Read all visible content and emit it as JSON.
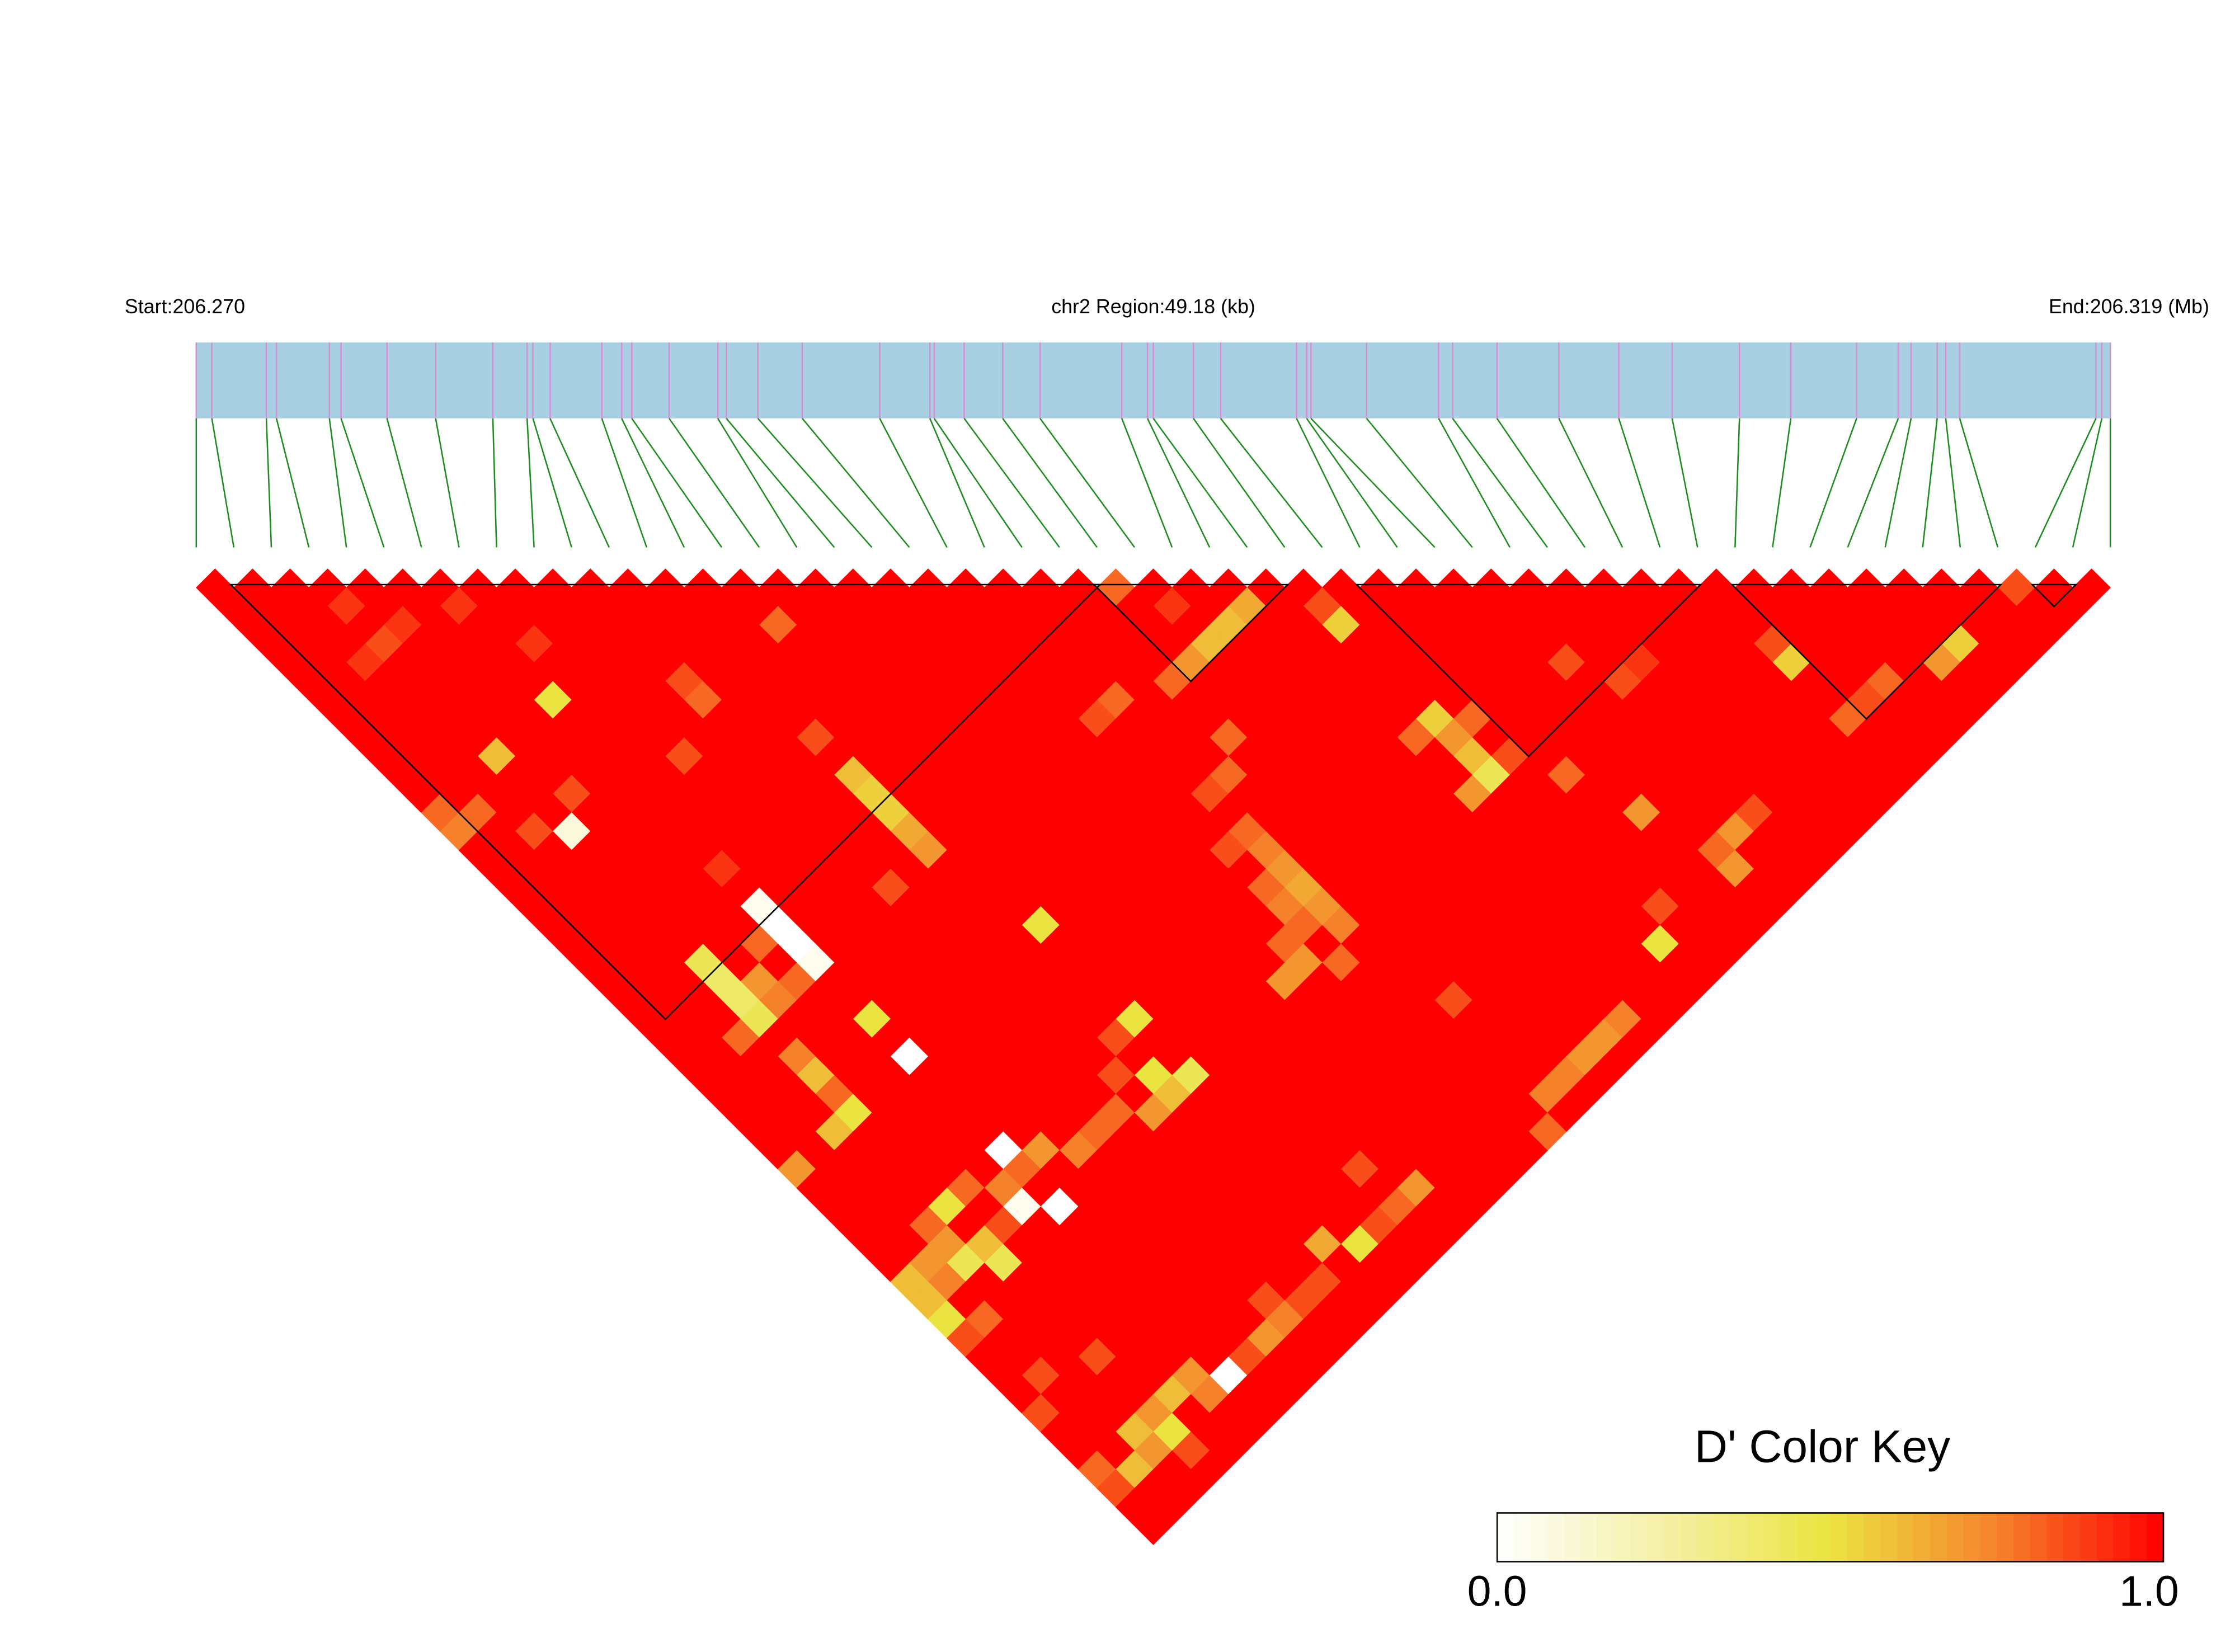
{
  "chart_data": {
    "type": "ld-heatmap",
    "start_label": "Start:206.270",
    "region_label": "chr2 Region:49.18 (kb)",
    "end_label": "End:206.319 (Mb)",
    "xlim": [
      0,
      49.18
    ],
    "snp_positions_kb": [
      0.0,
      0.4,
      1.8,
      2.06,
      3.42,
      3.72,
      4.9,
      6.15,
      7.62,
      8.5,
      8.65,
      9.09,
      10.42,
      10.93,
      11.19,
      12.15,
      13.4,
      13.62,
      14.43,
      15.57,
      17.56,
      18.85,
      18.96,
      19.73,
      20.72,
      21.68,
      23.78,
      24.44,
      24.59,
      25.62,
      26.32,
      28.27,
      28.53,
      28.64,
      30.07,
      31.92,
      32.28,
      33.42,
      35.01,
      36.55,
      37.92,
      39.65,
      40.97,
      42.66,
      43.73,
      44.06,
      44.73,
      44.95,
      45.31,
      48.81,
      48.96,
      49.18
    ],
    "ld": [
      [
        1,
        1,
        1,
        1,
        1,
        1,
        1,
        1,
        1,
        1,
        1,
        1,
        1,
        1,
        1,
        1,
        1,
        1,
        1,
        1,
        1,
        1,
        1,
        1,
        0.8,
        1,
        1,
        1,
        1,
        1,
        1,
        1,
        1,
        1,
        1,
        1,
        1,
        1,
        1,
        1,
        1,
        1,
        1,
        1,
        1,
        1,
        1,
        1,
        0.85,
        1,
        1
      ],
      [
        1,
        1,
        1,
        0.9,
        1,
        1,
        0.9,
        1,
        1,
        1,
        1,
        1,
        1,
        1,
        1,
        1,
        1,
        1,
        1,
        1,
        1,
        1,
        1,
        1,
        1,
        0.9,
        1,
        0.65,
        1,
        0.85,
        1,
        1,
        1,
        1,
        1,
        1,
        1,
        1,
        1,
        1,
        1,
        1,
        1,
        1,
        1,
        1,
        1,
        1,
        1,
        1
      ],
      [
        1,
        1,
        1,
        1,
        0.9,
        1,
        1,
        1,
        1,
        1,
        1,
        1,
        1,
        1,
        0.8,
        1,
        1,
        1,
        1,
        1,
        1,
        1,
        1,
        1,
        1,
        1,
        0.6,
        1,
        1,
        0.55,
        1,
        1,
        1,
        1,
        1,
        1,
        1,
        1,
        1,
        1,
        1,
        1,
        1,
        1,
        1,
        1,
        1,
        1,
        1
      ],
      [
        1,
        1,
        1,
        0.85,
        1,
        1,
        1,
        0.9,
        1,
        1,
        1,
        1,
        1,
        1,
        1,
        1,
        1,
        1,
        1,
        1,
        1,
        1,
        1,
        1,
        1,
        0.6,
        1,
        1,
        1,
        1,
        1,
        1,
        1,
        1,
        1,
        1,
        1,
        1,
        1,
        1,
        0.85,
        1,
        1,
        1,
        1,
        0.55,
        1,
        1
      ],
      [
        1,
        1,
        0.9,
        1,
        1,
        1,
        1,
        1,
        1,
        1,
        1,
        1,
        1,
        1,
        1,
        1,
        1,
        1,
        1,
        1,
        1,
        1,
        1,
        1,
        0.7,
        1,
        1,
        1,
        1,
        1,
        1,
        1,
        1,
        1,
        0.85,
        1,
        0.9,
        1,
        1,
        1,
        0.55,
        1,
        1,
        1,
        0.7,
        1,
        1
      ],
      [
        1,
        1,
        1,
        1,
        1,
        1,
        1,
        1,
        1,
        1,
        0.85,
        1,
        1,
        1,
        1,
        1,
        1,
        1,
        1,
        1,
        1,
        1,
        1,
        0.8,
        1,
        1,
        1,
        1,
        1,
        1,
        1,
        1,
        1,
        1,
        1,
        0.85,
        1,
        1,
        1,
        1,
        1,
        1,
        0.8,
        1,
        1,
        1
      ],
      [
        1,
        1,
        1,
        1,
        1,
        1,
        0.5,
        1,
        1,
        1,
        0.8,
        1,
        1,
        1,
        1,
        1,
        1,
        1,
        1,
        1,
        1,
        0.8,
        1,
        1,
        1,
        1,
        1,
        1,
        1,
        1,
        1,
        1,
        1,
        1,
        1,
        1,
        1,
        1,
        1,
        1,
        1,
        0.85,
        1,
        1,
        1
      ],
      [
        1,
        1,
        1,
        1,
        1,
        1,
        1,
        1,
        1,
        1,
        1,
        1,
        1,
        1,
        1,
        1,
        1,
        1,
        1,
        1,
        0.85,
        1,
        1,
        1,
        1,
        1,
        1,
        1,
        1,
        0.55,
        0.8,
        1,
        1,
        1,
        1,
        1,
        1,
        1,
        1,
        1,
        0.8,
        1,
        1,
        1
      ],
      [
        1,
        1,
        1,
        1,
        1,
        1,
        1,
        1,
        1,
        1,
        1,
        1,
        0.85,
        1,
        1,
        1,
        1,
        1,
        1,
        1,
        1,
        1,
        1,
        0.8,
        1,
        1,
        1,
        1,
        0.8,
        0.7,
        1,
        1,
        1,
        1,
        1,
        1,
        1,
        1,
        1,
        1,
        1,
        1,
        1
      ],
      [
        1,
        1,
        1,
        0.6,
        1,
        1,
        1,
        1,
        0.85,
        1,
        1,
        1,
        1,
        1,
        1,
        1,
        1,
        1,
        1,
        1,
        1,
        1,
        1,
        1,
        1,
        1,
        1,
        1,
        1,
        0.6,
        0.85,
        1,
        1,
        1,
        1,
        1,
        1,
        1,
        1,
        1,
        1,
        1
      ],
      [
        1,
        1,
        1,
        1,
        1,
        1,
        1,
        1,
        1,
        1,
        1,
        1,
        0.6,
        1,
        1,
        1,
        1,
        1,
        1,
        1,
        1,
        1,
        0.8,
        1,
        1,
        1,
        1,
        1,
        1,
        0.45,
        1,
        0.8,
        1,
        1,
        1,
        1,
        1,
        1,
        1,
        1,
        1
      ],
      [
        1,
        1,
        1,
        1,
        0.85,
        1,
        1,
        1,
        1,
        1,
        1,
        1,
        0.55,
        1,
        1,
        1,
        1,
        1,
        1,
        1,
        1,
        0.85,
        1,
        1,
        1,
        1,
        1,
        1,
        0.7,
        1,
        1,
        1,
        1,
        1,
        1,
        1,
        1,
        1,
        1,
        1
      ],
      [
        0.8,
        0.8,
        1,
        1,
        1,
        1,
        1,
        1,
        1,
        1,
        1,
        1,
        0.55,
        1,
        1,
        1,
        1,
        1,
        1,
        1,
        1,
        1,
        1,
        1,
        1,
        1,
        1,
        1,
        1,
        1,
        1,
        1,
        0.7,
        1,
        1,
        0.85,
        1,
        1,
        1
      ],
      [
        0.75,
        1,
        0.85,
        0.1,
        1,
        1,
        1,
        1,
        1,
        1,
        1,
        1,
        0.65,
        1,
        1,
        1,
        1,
        1,
        1,
        1,
        1,
        0.8,
        1,
        1,
        1,
        1,
        1,
        1,
        1,
        1,
        1,
        1,
        1,
        1,
        0.7,
        1,
        1,
        1
      ],
      [
        1,
        1,
        1,
        1,
        1,
        1,
        1,
        1,
        1,
        1,
        1,
        1,
        0.7,
        1,
        1,
        1,
        1,
        1,
        1,
        1,
        0.85,
        0.75,
        1,
        1,
        1,
        1,
        1,
        1,
        1,
        1,
        1,
        1,
        1,
        0.8,
        1,
        1,
        1
      ],
      [
        1,
        1,
        1,
        1,
        1,
        1,
        0.9,
        1,
        1,
        1,
        1,
        1,
        1,
        1,
        1,
        1,
        1,
        1,
        1,
        1,
        1,
        0.7,
        1,
        1,
        1,
        1,
        1,
        1,
        1,
        1,
        1,
        1,
        1,
        0.7,
        1,
        1
      ],
      [
        1,
        1,
        1,
        1,
        1,
        1,
        1,
        1,
        1,
        1,
        0.85,
        1,
        1,
        1,
        1,
        1,
        1,
        1,
        1,
        1,
        0.8,
        0.65,
        1,
        1,
        1,
        1,
        1,
        1,
        1,
        1,
        1,
        1,
        1,
        1,
        1
      ],
      [
        1,
        1,
        1,
        1,
        1,
        1,
        0.05,
        1,
        1,
        1,
        1,
        1,
        1,
        1,
        1,
        1,
        1,
        1,
        1,
        1,
        0.75,
        0.7,
        1,
        1,
        1,
        1,
        1,
        1,
        1,
        1,
        0.85,
        1,
        1,
        1
      ],
      [
        1,
        1,
        1,
        1,
        1,
        1,
        0,
        1,
        1,
        1,
        1,
        1,
        1,
        0.5,
        1,
        1,
        1,
        1,
        1,
        1,
        0.8,
        0.75,
        1,
        1,
        1,
        1,
        1,
        1,
        1,
        1,
        1,
        1,
        1
      ],
      [
        1,
        1,
        1,
        1,
        1,
        0.8,
        0,
        1,
        1,
        1,
        1,
        1,
        1,
        1,
        1,
        1,
        1,
        1,
        1,
        0.8,
        1,
        1,
        1,
        1,
        1,
        1,
        1,
        1,
        1,
        0.5,
        1,
        1
      ],
      [
        1,
        1,
        1,
        0.45,
        1,
        1,
        0.05,
        1,
        1,
        1,
        1,
        1,
        1,
        1,
        1,
        1,
        1,
        1,
        1,
        0.7,
        0.8,
        1,
        1,
        1,
        1,
        1,
        1,
        1,
        1,
        1,
        1
      ],
      [
        1,
        1,
        1,
        0.4,
        0.7,
        0.8,
        1,
        1,
        1,
        1,
        1,
        1,
        1,
        1,
        1,
        1,
        1,
        1,
        0.7,
        1,
        1,
        1,
        1,
        1,
        1,
        1,
        1,
        1,
        1,
        1
      ],
      [
        1,
        1,
        1,
        0.4,
        0.75,
        1,
        1,
        1,
        1,
        1,
        1,
        1,
        1,
        1,
        1,
        1,
        1,
        1,
        1,
        1,
        1,
        1,
        0.85,
        1,
        1,
        1,
        1,
        1,
        1
      ],
      [
        1,
        1,
        1,
        0.45,
        1,
        1,
        0.5,
        1,
        1,
        1,
        1,
        1,
        1,
        0.5,
        1,
        1,
        1,
        1,
        1,
        1,
        1,
        1,
        1,
        1,
        1,
        1,
        0.75,
        1
      ],
      [
        1,
        1,
        0.8,
        1,
        1,
        1,
        1,
        1,
        1,
        1,
        1,
        1,
        0.85,
        1,
        1,
        1,
        1,
        1,
        1,
        1,
        1,
        1,
        1,
        1,
        1,
        0.7,
        1
      ],
      [
        1,
        1,
        1,
        0.75,
        1,
        1,
        0,
        1,
        1,
        1,
        1,
        1,
        1,
        1,
        1,
        1,
        1,
        1,
        1,
        1,
        1,
        1,
        1,
        1,
        0.7,
        1
      ],
      [
        1,
        1,
        1,
        0.6,
        1,
        1,
        1,
        1,
        1,
        1,
        1,
        0.85,
        0.5,
        0.45,
        1,
        1,
        1,
        1,
        1,
        1,
        1,
        1,
        1,
        0.75,
        1
      ],
      [
        1,
        1,
        1,
        0.8,
        1,
        1,
        1,
        1,
        1,
        1,
        1,
        1,
        0.6,
        1,
        1,
        1,
        1,
        1,
        1,
        1,
        1,
        1,
        0.75,
        1
      ],
      [
        1,
        1,
        1,
        0.5,
        1,
        1,
        1,
        1,
        1,
        1,
        0.8,
        0.7,
        1,
        1,
        1,
        1,
        1,
        1,
        1,
        1,
        1,
        1,
        1
      ],
      [
        1,
        1,
        0.6,
        1,
        1,
        1,
        1,
        1,
        1,
        0.8,
        1,
        1,
        1,
        1,
        1,
        1,
        1,
        1,
        1,
        1,
        1,
        0.8
      ],
      [
        1,
        1,
        1,
        1,
        1,
        1,
        0,
        0.7,
        0.75,
        1,
        1,
        1,
        1,
        1,
        1,
        1,
        1,
        1,
        1,
        1,
        1
      ],
      [
        0.7,
        1,
        1,
        1,
        1,
        1,
        0.8,
        1,
        1,
        1,
        1,
        1,
        1,
        1,
        1,
        0.85,
        1,
        1,
        1,
        1
      ],
      [
        1,
        1,
        1,
        1,
        0.8,
        0.75,
        1,
        1,
        1,
        1,
        1,
        1,
        1,
        1,
        1,
        1,
        0.7,
        1,
        1
      ],
      [
        1,
        1,
        1,
        0.5,
        1,
        0.05,
        0,
        1,
        1,
        1,
        1,
        1,
        1,
        1,
        1,
        0.8,
        1,
        1
      ],
      [
        1,
        1,
        0.8,
        1,
        0.85,
        1,
        1,
        1,
        1,
        1,
        1,
        1,
        1,
        1,
        0.85,
        1,
        1
      ],
      [
        1,
        1,
        0.7,
        0.6,
        1,
        1,
        1,
        1,
        1,
        1,
        1,
        1,
        0.65,
        0.5,
        1,
        1
      ],
      [
        1,
        0.7,
        0.45,
        0.45,
        1,
        1,
        1,
        1,
        1,
        1,
        1,
        1,
        1,
        1,
        1
      ],
      [
        0.6,
        0.75,
        1,
        1,
        1,
        1,
        1,
        1,
        1,
        1,
        1,
        0.85,
        1,
        1
      ],
      [
        0.6,
        1,
        1,
        1,
        1,
        1,
        1,
        1,
        1,
        0.85,
        0.85,
        1,
        1
      ],
      [
        0.5,
        0.8,
        1,
        1,
        1,
        1,
        1,
        1,
        1,
        0.75,
        1,
        1
      ],
      [
        0.85,
        1,
        1,
        1,
        1,
        1,
        1,
        1,
        0.7,
        1,
        1
      ],
      [
        1,
        1,
        1,
        0.85,
        1,
        1,
        1,
        0.85,
        1,
        1
      ],
      [
        1,
        0.85,
        1,
        1,
        1,
        0.7,
        0,
        1,
        1
      ],
      [
        1,
        1,
        1,
        1,
        0.6,
        0.75,
        1,
        1
      ],
      [
        0.85,
        1,
        1,
        0.7,
        1,
        1,
        1
      ],
      [
        1,
        1,
        0.6,
        0.5,
        1,
        1
      ],
      [
        1,
        1,
        0.7,
        0.85,
        1
      ],
      [
        0.8,
        0.6,
        1,
        1
      ],
      [
        0.85,
        1,
        1
      ],
      [
        1,
        1
      ],
      [
        1
      ]
    ],
    "blocks": [
      [
        1,
        24
      ],
      [
        24,
        29
      ],
      [
        31,
        40
      ],
      [
        41,
        48
      ],
      [
        49,
        50
      ]
    ],
    "track_color": "#a9d0e2",
    "snp_line_color": "#d98bd4",
    "connector_color": "#1e8c1e",
    "block_color": "#000000",
    "colorbar": {
      "title": "D' Color Key",
      "lim": [
        0,
        1
      ],
      "ticks": [
        {
          "value": 0,
          "label": "0.0"
        },
        {
          "value": 1,
          "label": "1.0"
        }
      ],
      "colors": [
        "#ffffff",
        "#f4f0a6",
        "#ebe440",
        "#f5822b",
        "#ff0000"
      ]
    }
  }
}
